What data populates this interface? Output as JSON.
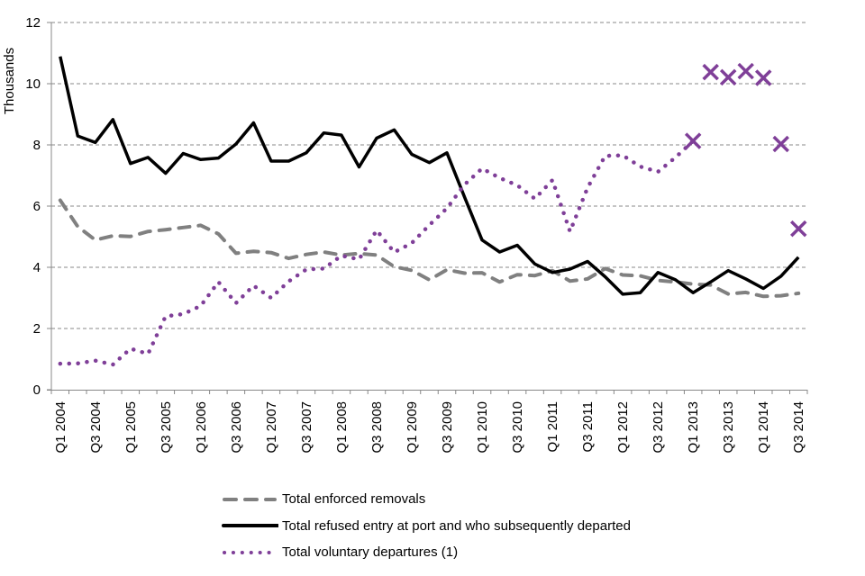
{
  "chart_data": {
    "type": "line",
    "title": "",
    "xlabel": "",
    "ylabel": "Thousands",
    "ylim": [
      0,
      12
    ],
    "yticks": [
      0,
      2,
      4,
      6,
      8,
      10,
      12
    ],
    "grid": true,
    "legend_position": "bottom",
    "categories": [
      "Q1 2004",
      "Q2 2004",
      "Q3 2004",
      "Q4 2004",
      "Q1 2005",
      "Q2 2005",
      "Q3 2005",
      "Q4 2005",
      "Q1 2006",
      "Q2 2006",
      "Q3 2006",
      "Q4 2006",
      "Q1 2007",
      "Q2 2007",
      "Q3 2007",
      "Q4 2007",
      "Q1 2008",
      "Q2 2008",
      "Q3 2008",
      "Q4 2008",
      "Q1 2009",
      "Q2 2009",
      "Q3 2009",
      "Q4 2009",
      "Q1 2010",
      "Q2 2010",
      "Q3 2010",
      "Q4 2010",
      "Q1 2011",
      "Q2 2011",
      "Q3 2011",
      "Q4 2011",
      "Q1 2012",
      "Q2 2012",
      "Q3 2012",
      "Q4 2012",
      "Q1 2013",
      "Q2 2013",
      "Q3 2013",
      "Q4 2013",
      "Q1 2014",
      "Q2 2014",
      "Q3 2014"
    ],
    "tick_labels_shown": [
      "Q1 2004",
      "Q3 2004",
      "Q1 2005",
      "Q3 2005",
      "Q1 2006",
      "Q3 2006",
      "Q1 2007",
      "Q3 2007",
      "Q1 2008",
      "Q3 2008",
      "Q1 2009",
      "Q3 2009",
      "Q1 2010",
      "Q3 2010",
      "Q1 2011",
      "Q3 2011",
      "Q1 2012",
      "Q3 2012",
      "Q1 2013",
      "Q3 2013",
      "Q1 2014",
      "Q3 2014"
    ],
    "series": [
      {
        "name": "Total enforced removals",
        "style": "dashed",
        "color": "#808080",
        "values": [
          6.19,
          5.33,
          4.89,
          5.03,
          5.01,
          5.17,
          5.23,
          5.3,
          5.37,
          5.09,
          4.46,
          4.52,
          4.48,
          4.29,
          4.42,
          4.5,
          4.4,
          4.45,
          4.4,
          4.02,
          3.9,
          3.59,
          3.92,
          3.81,
          3.82,
          3.52,
          3.76,
          3.73,
          3.89,
          3.55,
          3.62,
          3.96,
          3.75,
          3.72,
          3.57,
          3.52,
          3.45,
          3.42,
          3.13,
          3.18,
          3.05,
          3.07,
          3.15
        ]
      },
      {
        "name": "Total refused entry at port and who subsequently departed",
        "style": "solid",
        "color": "#000000",
        "values": [
          10.89,
          8.29,
          8.08,
          8.83,
          7.39,
          7.59,
          7.07,
          7.72,
          7.52,
          7.57,
          8.03,
          8.72,
          7.47,
          7.47,
          7.74,
          8.39,
          8.32,
          7.28,
          8.22,
          8.49,
          7.69,
          7.42,
          7.74,
          6.3,
          4.89,
          4.5,
          4.72,
          4.11,
          3.83,
          3.94,
          4.19,
          3.69,
          3.12,
          3.17,
          3.83,
          3.59,
          3.17,
          3.52,
          3.89,
          3.62,
          3.31,
          3.71,
          4.33
        ]
      },
      {
        "name": "Total voluntary departures (1)",
        "style": "dotted",
        "color": "#7F3F98",
        "values": [
          0.85,
          0.86,
          0.95,
          0.82,
          1.34,
          1.17,
          2.4,
          2.47,
          2.74,
          3.52,
          2.83,
          3.4,
          3.0,
          3.54,
          3.93,
          3.96,
          4.38,
          4.26,
          5.21,
          4.49,
          4.79,
          5.38,
          5.93,
          6.7,
          7.23,
          6.92,
          6.68,
          6.24,
          6.85,
          5.17,
          6.6,
          7.64,
          7.66,
          7.29,
          7.12,
          7.59,
          8.13,
          null,
          null,
          null,
          null,
          null,
          null
        ],
        "provisional_markers": {
          "marker": "x",
          "categories": [
            "Q1 2013",
            "Q2 2013",
            "Q3 2013",
            "Q4 2013",
            "Q1 2014",
            "Q2 2014",
            "Q3 2014"
          ],
          "values": [
            8.13,
            10.38,
            10.21,
            10.41,
            10.19,
            8.03,
            5.26
          ]
        }
      }
    ]
  },
  "legend": {
    "items": [
      {
        "label": "Total enforced removals"
      },
      {
        "label": "Total refused entry at port and who subsequently departed"
      },
      {
        "label": "Total voluntary departures (1)"
      }
    ]
  }
}
